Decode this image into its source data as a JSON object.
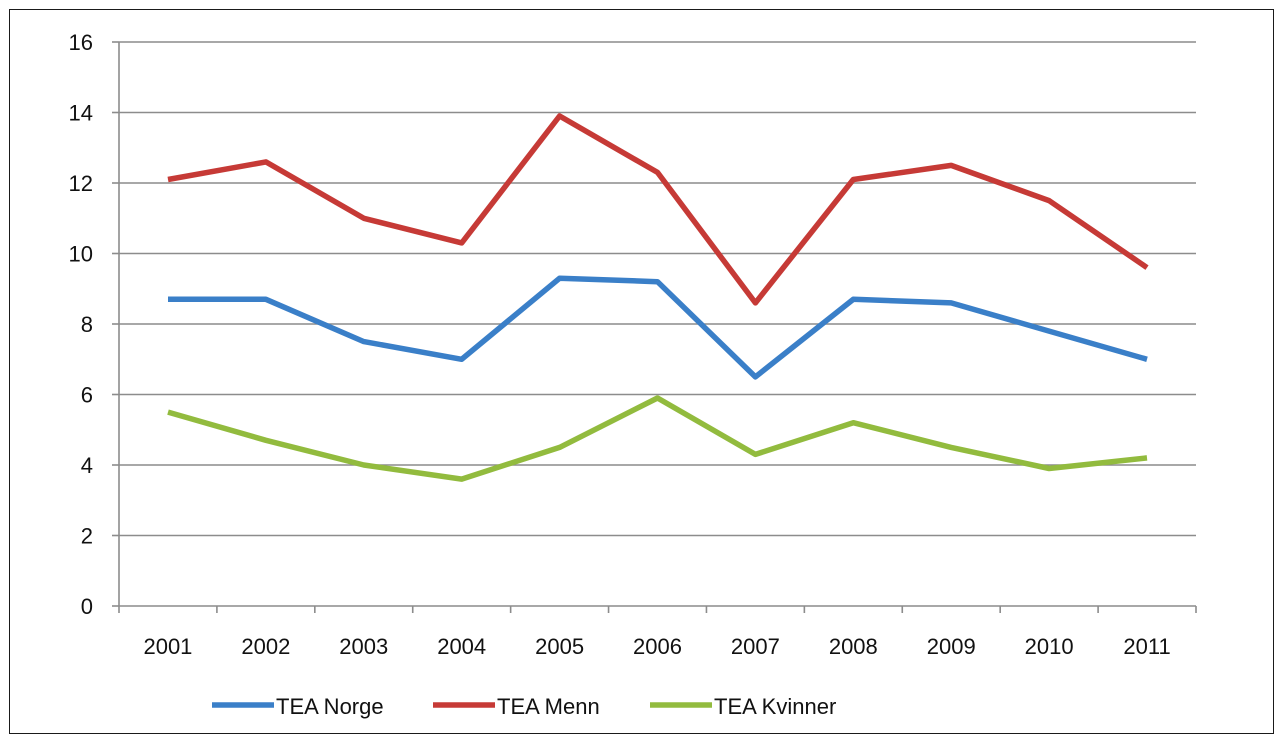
{
  "chart_data": {
    "type": "line",
    "title": "",
    "xlabel": "",
    "ylabel": "",
    "categories": [
      "2001",
      "2002",
      "2003",
      "2004",
      "2005",
      "2006",
      "2007",
      "2008",
      "2009",
      "2010",
      "2011"
    ],
    "ylim": [
      0,
      16
    ],
    "yticks": [
      "0",
      "2",
      "4",
      "6",
      "8",
      "10",
      "12",
      "14",
      "16"
    ],
    "grid": true,
    "legend_position": "bottom",
    "series": [
      {
        "name": "TEA Norge",
        "color": "#3a7fc8",
        "values": [
          8.7,
          8.7,
          7.5,
          7.0,
          9.3,
          9.2,
          6.5,
          8.7,
          8.6,
          7.8,
          7.0
        ]
      },
      {
        "name": "TEA Menn",
        "color": "#c63a36",
        "values": [
          12.1,
          12.6,
          11.0,
          10.3,
          13.9,
          12.3,
          8.6,
          12.1,
          12.5,
          11.5,
          9.6
        ]
      },
      {
        "name": "TEA Kvinner",
        "color": "#92bb3e",
        "values": [
          5.5,
          4.7,
          4.0,
          3.6,
          4.5,
          5.9,
          4.3,
          5.2,
          4.5,
          3.9,
          4.2
        ]
      }
    ]
  }
}
